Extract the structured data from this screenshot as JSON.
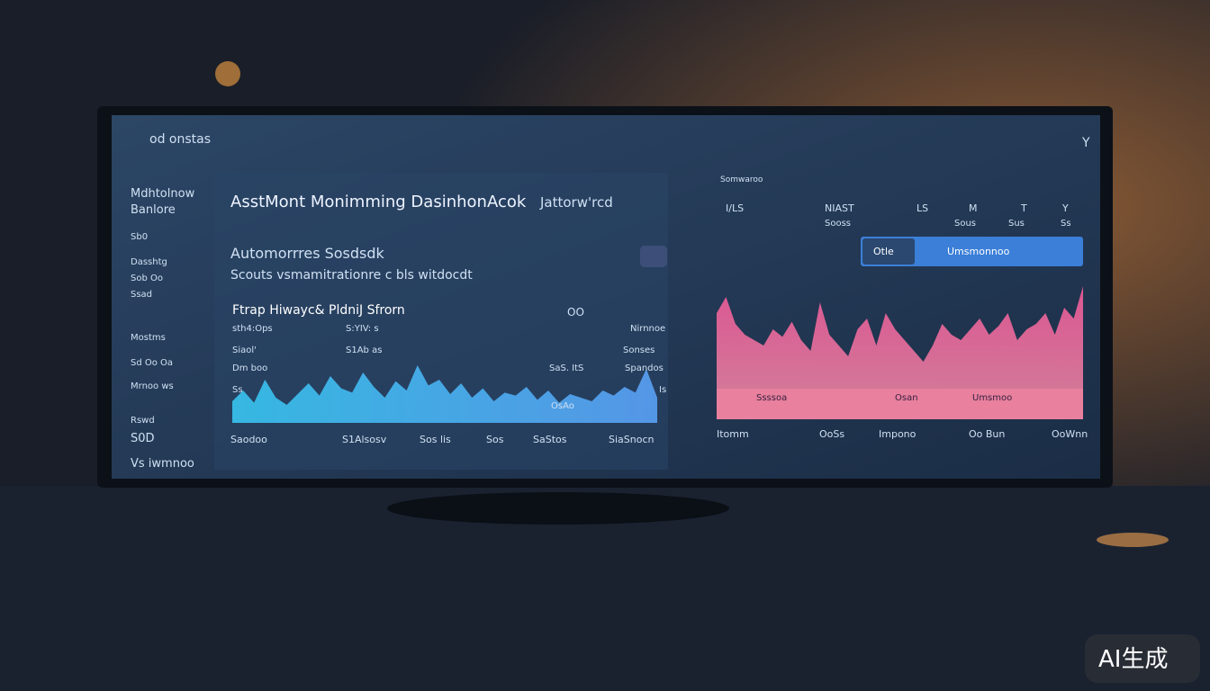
{
  "header": {
    "logo": "od onstas",
    "icon_label": "Y"
  },
  "sidebar": {
    "items": [
      "Mdhtolnow",
      "Banlore",
      "Sb0",
      "Dasshtg",
      "Sob Oo",
      "Ssad",
      "Mostms",
      "Sd Oo Oa",
      "Mrnoo ws",
      "Rswd",
      "S0D",
      "Vs iwmnoo"
    ]
  },
  "main": {
    "title": "AsstMont Monimming DasinhonAcok",
    "title_suffix": "Jattorw'rcd",
    "subtitle": "Automorrres Sosdsdk",
    "description": "Scouts vsmamitrationre c bls witdocdt"
  },
  "left_chart": {
    "title": "Ftrap Hiwayc&  PldniJ Sfrorn",
    "badge": "OO",
    "row_labels": [
      "sth4:Ops",
      "Siaol'",
      "Dm boo",
      "Ss"
    ],
    "inner_labels": [
      "S:YIV: s",
      "S1Ab as",
      "SaS. ItS",
      "OsAo"
    ],
    "right_labels": [
      "Nirnnoe",
      "Sonses",
      "Spandos",
      "Is"
    ],
    "x_labels": [
      "Saodoo",
      "S1Alsosv",
      "Sos lis",
      "Sos",
      "SaStos",
      "SiaSnocn"
    ],
    "values": [
      30,
      45,
      28,
      60,
      35,
      25,
      40,
      55,
      38,
      65,
      48,
      42,
      70,
      50,
      35,
      58,
      45,
      80,
      52,
      60,
      40,
      55,
      35,
      48,
      30,
      42,
      38,
      50,
      32,
      45,
      28,
      40,
      35,
      30,
      45,
      38,
      50,
      42,
      75,
      35
    ]
  },
  "right_panel": {
    "tag": "Somwaroo",
    "columns": [
      "I/LS",
      "NIAST",
      "LS",
      "M",
      "T",
      "Y"
    ],
    "sub_columns": [
      "Sooss",
      "Sous",
      "Sus",
      "Ss"
    ],
    "tab_left": "Otle",
    "tab_main": "Umsmonnoo",
    "band_labels": [
      "Ssssoa",
      "Osan",
      "Umsmoo"
    ],
    "x_labels": [
      "Itomm",
      "OoSs",
      "Impono",
      "Oo Bun",
      "OoWnn"
    ]
  },
  "right_chart": {
    "values": [
      70,
      85,
      60,
      50,
      45,
      40,
      55,
      48,
      62,
      45,
      35,
      80,
      50,
      40,
      30,
      55,
      65,
      40,
      70,
      55,
      45,
      35,
      25,
      40,
      60,
      50,
      45,
      55,
      65,
      50,
      58,
      70,
      45,
      55,
      60,
      70,
      50,
      75,
      65,
      95
    ]
  },
  "watermark": "AI生成"
}
